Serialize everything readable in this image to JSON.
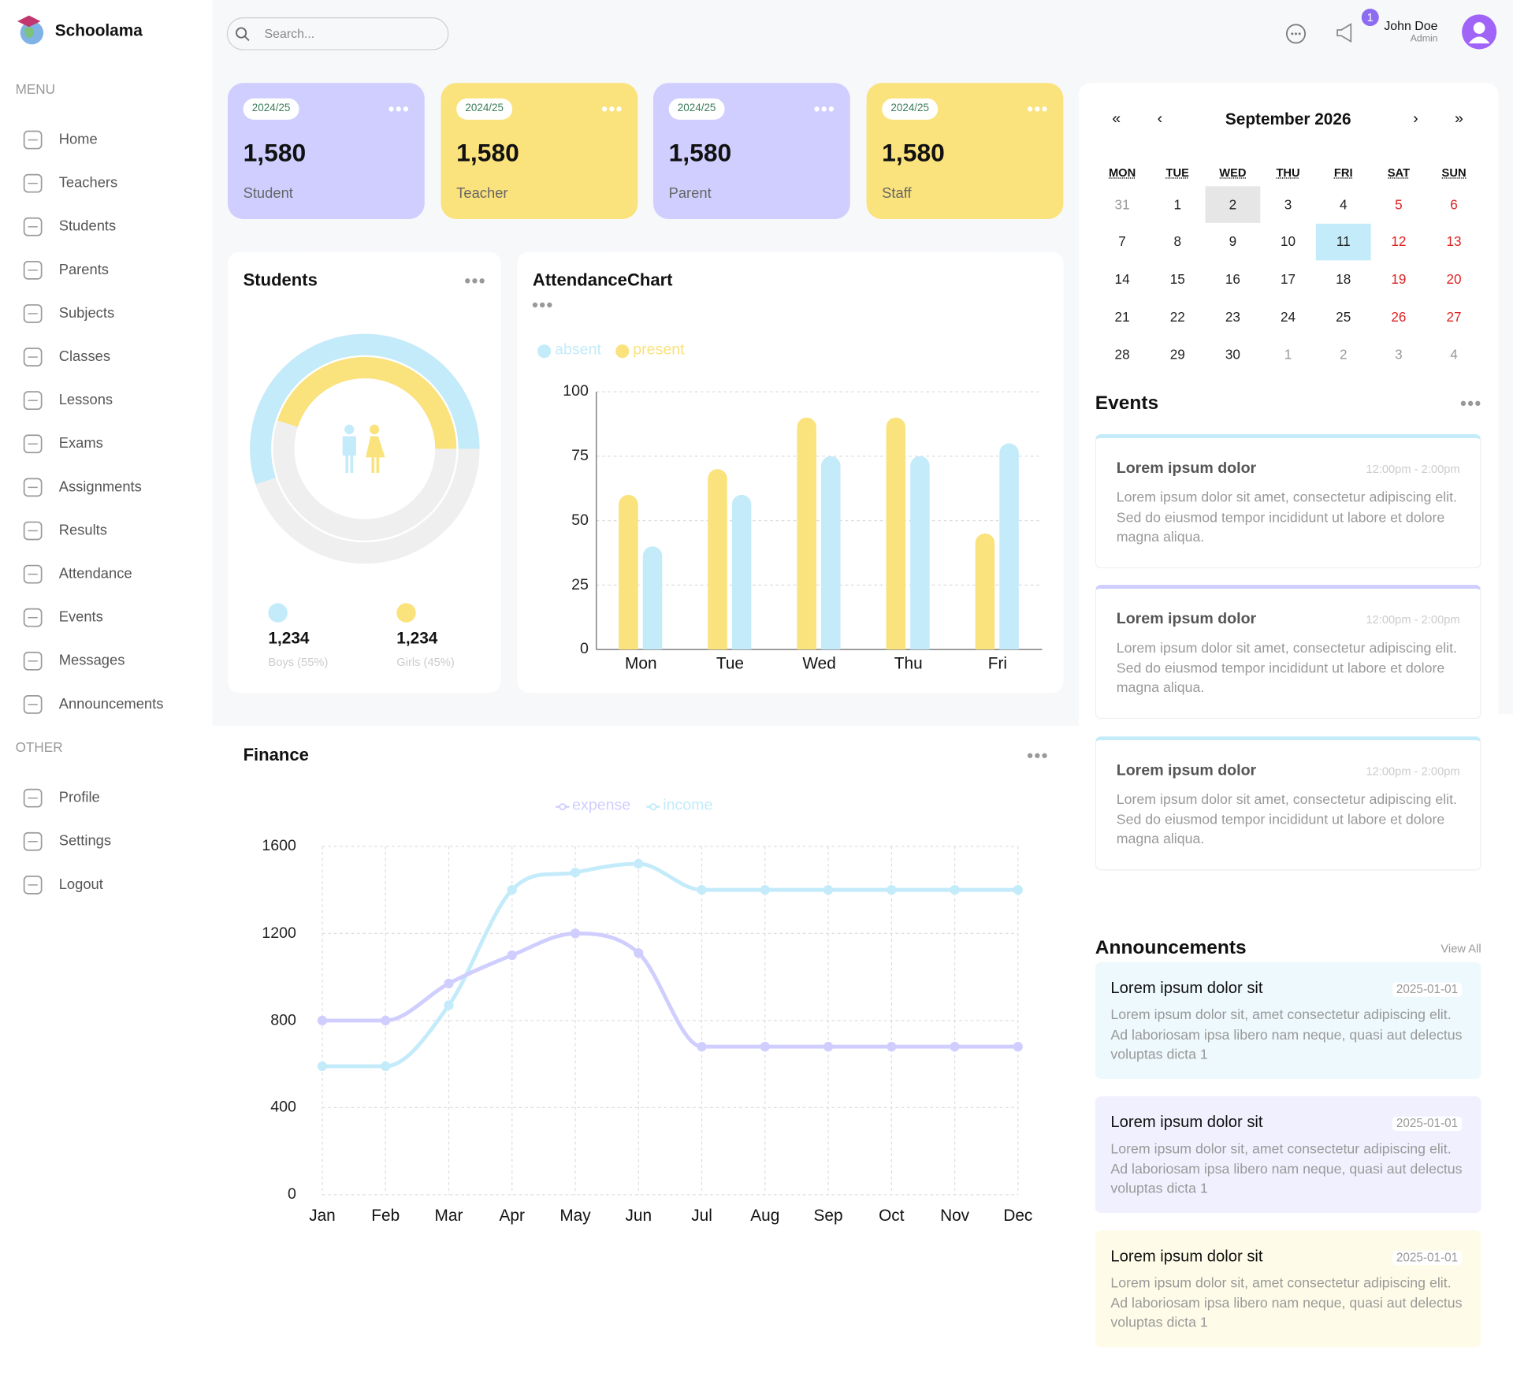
{
  "sidebar": {
    "logo": "Schoolama",
    "menu_label": "MENU",
    "menu": [
      "Home",
      "Teachers",
      "Students",
      "Parents",
      "Subjects",
      "Classes",
      "Lessons",
      "Exams",
      "Assignments",
      "Results",
      "Attendance",
      "Events",
      "Messages",
      "Announcements"
    ],
    "other_label": "OTHER",
    "other": [
      "Profile",
      "Settings",
      "Logout"
    ]
  },
  "header": {
    "search_placeholder": "Search...",
    "badge": "1",
    "user_name": "John Doe",
    "user_role": "Admin"
  },
  "cards": [
    {
      "year": "2024/25",
      "count": "1,580",
      "label": "Student"
    },
    {
      "year": "2024/25",
      "count": "1,580",
      "label": "Teacher"
    },
    {
      "year": "2024/25",
      "count": "1,580",
      "label": "Parent"
    },
    {
      "year": "2024/25",
      "count": "1,580",
      "label": "Staff"
    }
  ],
  "chart_data": [
    {
      "type": "radial",
      "title": "Students",
      "values": [
        55,
        45
      ],
      "value_labels": [
        "Boys (55%)",
        "Girls (45%)"
      ],
      "totals": [
        1234,
        1234
      ],
      "total_labels": [
        "1,234",
        "1,234"
      ],
      "colors": [
        "#c3ebfa",
        "#fae27c"
      ]
    },
    {
      "type": "bar",
      "title": "AttendanceChart",
      "categories": [
        "Mon",
        "Tue",
        "Wed",
        "Thu",
        "Fri"
      ],
      "series": [
        {
          "name": "absent",
          "color": "#c3ebfa",
          "values": [
            40,
            60,
            75,
            75,
            80
          ]
        },
        {
          "name": "present",
          "color": "#fae27c",
          "values": [
            60,
            70,
            90,
            90,
            45
          ]
        }
      ],
      "ylim": [
        0,
        100
      ],
      "yticks": [
        0,
        25,
        50,
        75,
        100
      ],
      "grid": true
    },
    {
      "type": "line",
      "title": "Finance",
      "categories": [
        "Jan",
        "Feb",
        "Mar",
        "Apr",
        "May",
        "Jun",
        "Jul",
        "Aug",
        "Sep",
        "Oct",
        "Nov",
        "Dec"
      ],
      "series": [
        {
          "name": "expense",
          "color": "#cfceff",
          "values": [
            800,
            800,
            970,
            1100,
            1200,
            1110,
            680,
            680,
            680,
            680,
            680,
            680
          ]
        },
        {
          "name": "income",
          "color": "#c3ebfa",
          "values": [
            590,
            590,
            870,
            1400,
            1480,
            1520,
            1400,
            1400,
            1400,
            1400,
            1400,
            1400
          ]
        }
      ],
      "ylim": [
        0,
        1600
      ],
      "yticks": [
        0,
        400,
        800,
        1200,
        1600
      ],
      "grid": true
    }
  ],
  "calendar": {
    "title": "September 2026",
    "nav": [
      "«",
      "‹",
      "›",
      "»"
    ],
    "weekdays": [
      "MON",
      "TUE",
      "WED",
      "THU",
      "FRI",
      "SAT",
      "SUN"
    ],
    "weeks": [
      [
        "31",
        "1",
        "2",
        "3",
        "4",
        "5",
        "6"
      ],
      [
        "7",
        "8",
        "9",
        "10",
        "11",
        "12",
        "13"
      ],
      [
        "14",
        "15",
        "16",
        "17",
        "18",
        "19",
        "20"
      ],
      [
        "21",
        "22",
        "23",
        "24",
        "25",
        "26",
        "27"
      ],
      [
        "28",
        "29",
        "30",
        "1",
        "2",
        "3",
        "4"
      ]
    ]
  },
  "events": {
    "title": "Events",
    "items": [
      {
        "title": "Lorem ipsum dolor",
        "time": "12:00pm - 2:00pm",
        "description": "Lorem ipsum dolor sit amet, consectetur adipiscing elit. Sed do eiusmod tempor incididunt ut labore et dolore magna aliqua."
      },
      {
        "title": "Lorem ipsum dolor",
        "time": "12:00pm - 2:00pm",
        "description": "Lorem ipsum dolor sit amet, consectetur adipiscing elit. Sed do eiusmod tempor incididunt ut labore et dolore magna aliqua."
      },
      {
        "title": "Lorem ipsum dolor",
        "time": "12:00pm - 2:00pm",
        "description": "Lorem ipsum dolor sit amet, consectetur adipiscing elit. Sed do eiusmod tempor incididunt ut labore et dolore magna aliqua."
      }
    ]
  },
  "announcements": {
    "title": "Announcements",
    "view_all": "View All",
    "items": [
      {
        "title": "Lorem ipsum dolor sit",
        "date": "2025-01-01",
        "description": "Lorem ipsum dolor sit, amet consectetur adipiscing elit. Ad laboriosam ipsa libero nam neque, quasi aut delectus voluptas dicta 1"
      },
      {
        "title": "Lorem ipsum dolor sit",
        "date": "2025-01-01",
        "description": "Lorem ipsum dolor sit, amet consectetur adipiscing elit. Ad laboriosam ipsa libero nam neque, quasi aut delectus voluptas dicta 1"
      },
      {
        "title": "Lorem ipsum dolor sit",
        "date": "2025-01-01",
        "description": "Lorem ipsum dolor sit, amet consectetur adipiscing elit. Ad laboriosam ipsa libero nam neque, quasi aut delectus voluptas dicta 1"
      }
    ]
  }
}
